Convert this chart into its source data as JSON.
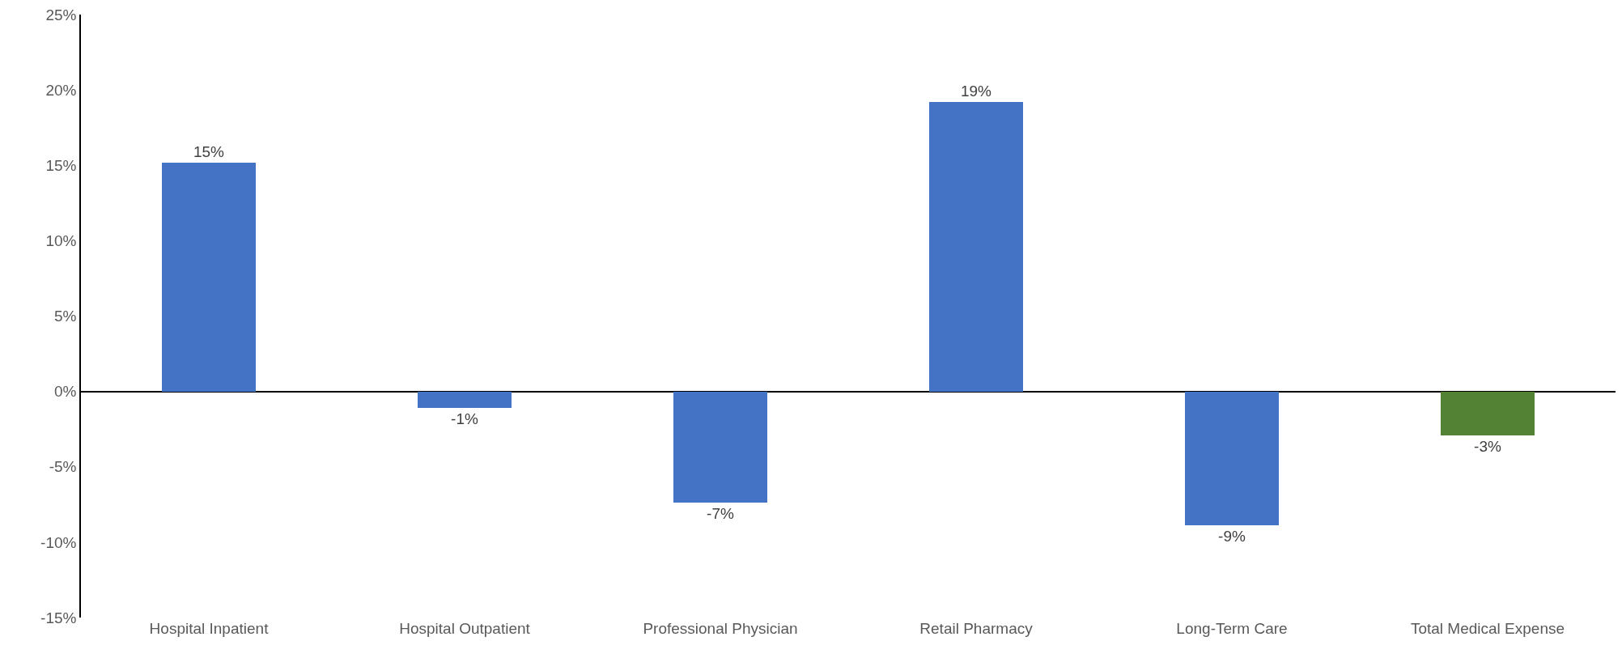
{
  "chart_data": {
    "type": "bar",
    "categories": [
      "Hospital Inpatient",
      "Hospital Outpatient",
      "Professional Physician",
      "Retail Pharmacy",
      "Long-Term Care",
      "Total Medical Expense"
    ],
    "values": [
      15.2,
      -1.1,
      -7.4,
      19.2,
      -8.9,
      -2.9
    ],
    "value_labels": [
      "15%",
      "-1%",
      "-7%",
      "19%",
      "-9%",
      "-3%"
    ],
    "colors": [
      "#4472c4",
      "#4472c4",
      "#4472c4",
      "#4472c4",
      "#4472c4",
      "#548235"
    ],
    "ylim": [
      -15,
      25
    ],
    "yticks": [
      {
        "value": -15,
        "label": "-15%"
      },
      {
        "value": -10,
        "label": "-10%"
      },
      {
        "value": -5,
        "label": "-5%"
      },
      {
        "value": 0,
        "label": "0%"
      },
      {
        "value": 5,
        "label": "5%"
      },
      {
        "value": 10,
        "label": "10%"
      },
      {
        "value": 15,
        "label": "15%"
      },
      {
        "value": 20,
        "label": "20%"
      },
      {
        "value": 25,
        "label": "25%"
      }
    ]
  }
}
